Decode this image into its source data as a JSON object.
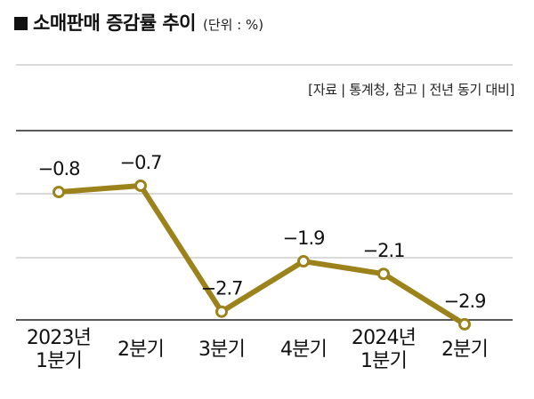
{
  "header": {
    "title": "소매판매 증감률 추이",
    "unit": "(단위 : %)"
  },
  "source_note": "[자료 | 통계청, 참고 | 전년 동기 대비]",
  "colors": {
    "line": "#9b821b",
    "point_fill": "#ffffff",
    "grid": "#b5b5b5",
    "axis": "#222222"
  },
  "chart_data": {
    "type": "line",
    "title": "소매판매 증감률 추이",
    "unit": "(단위 : %)",
    "categories": [
      "2023년 1분기",
      "2분기",
      "3분기",
      "4분기",
      "2024년 1분기",
      "2분기"
    ],
    "category_lines": [
      [
        "2023년",
        "1분기"
      ],
      [
        "2분기"
      ],
      [
        "3분기"
      ],
      [
        "4분기"
      ],
      [
        "2024년",
        "1분기"
      ],
      [
        "2분기"
      ]
    ],
    "values": [
      -0.8,
      -0.7,
      -2.7,
      -1.9,
      -2.1,
      -2.9
    ],
    "labels": [
      "−0.8",
      "−0.7",
      "−2.7",
      "−1.9",
      "−2.1",
      "−2.9"
    ],
    "grid": true,
    "legend": "none"
  }
}
